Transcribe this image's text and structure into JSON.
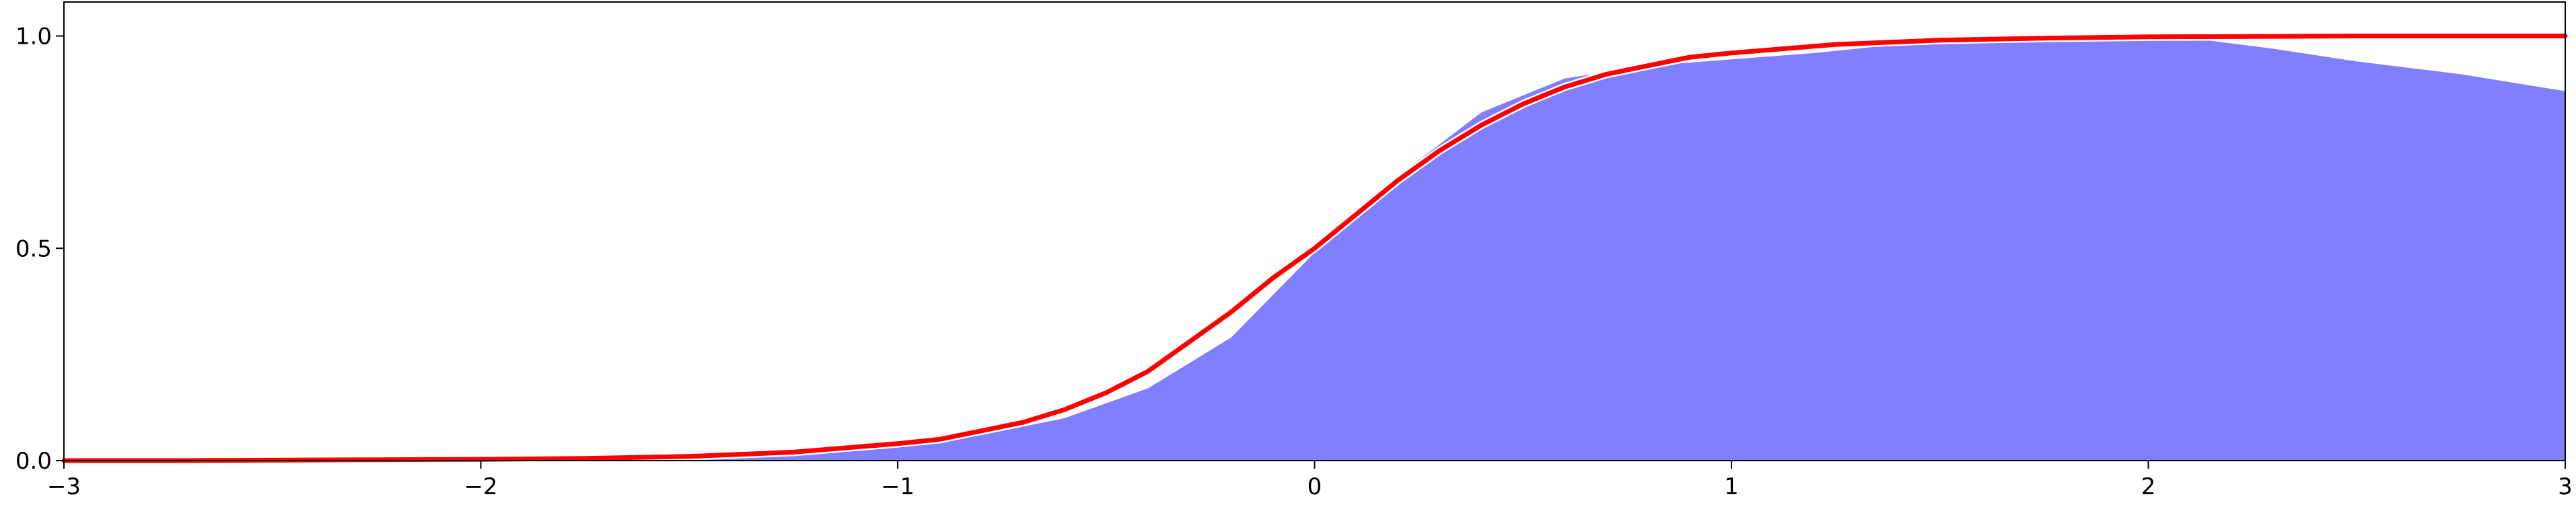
{
  "chart_data": {
    "type": "area",
    "title": "",
    "xlabel": "",
    "ylabel": "",
    "xlim": [
      -3,
      3
    ],
    "ylim": [
      0,
      1.08
    ],
    "grid": false,
    "x_ticks": [
      -3,
      -2,
      -1,
      0,
      1,
      2,
      3
    ],
    "x_tick_labels": [
      "−3",
      "−2",
      "−1",
      "0",
      "1",
      "2",
      "3"
    ],
    "y_ticks": [
      0.0,
      0.5,
      1.0
    ],
    "y_tick_labels": [
      "0.0",
      "0.5",
      "1.0"
    ],
    "series": [
      {
        "kind": "area",
        "color": "#8080ff",
        "x": [
          -3,
          -2.5,
          -2,
          -1.5,
          -1,
          -0.8,
          -0.6,
          -0.4,
          -0.2,
          0,
          0.2,
          0.4,
          0.6,
          0.8,
          1,
          1.2,
          1.5,
          1.8,
          2,
          2.1,
          2.3,
          2.5,
          2.75,
          3
        ],
        "values": [
          0.0,
          0.0,
          0.0,
          0.005,
          0.032,
          0.06,
          0.1,
          0.17,
          0.29,
          0.49,
          0.67,
          0.82,
          0.9,
          0.93,
          0.945,
          0.96,
          0.99,
          1.0,
          1.0,
          0.995,
          0.97,
          0.94,
          0.91,
          0.87
        ]
      },
      {
        "kind": "line",
        "color": "#ff0000",
        "x": [
          -3,
          -2.75,
          -2.5,
          -2.25,
          -2,
          -1.75,
          -1.5,
          -1.25,
          -1,
          -0.9,
          -0.8,
          -0.7,
          -0.6,
          -0.5,
          -0.4,
          -0.3,
          -0.2,
          -0.1,
          0,
          0.1,
          0.2,
          0.3,
          0.4,
          0.5,
          0.6,
          0.7,
          0.8,
          0.9,
          1,
          1.25,
          1.5,
          1.75,
          2,
          2.25,
          2.5,
          2.75,
          3
        ],
        "values": [
          0.0,
          0.0,
          0.001,
          0.002,
          0.003,
          0.005,
          0.01,
          0.02,
          0.04,
          0.05,
          0.07,
          0.09,
          0.12,
          0.16,
          0.21,
          0.28,
          0.35,
          0.43,
          0.5,
          0.58,
          0.66,
          0.73,
          0.79,
          0.84,
          0.88,
          0.91,
          0.93,
          0.95,
          0.96,
          0.98,
          0.99,
          0.995,
          0.998,
          0.999,
          1.0,
          1.0,
          1.0
        ]
      }
    ]
  }
}
